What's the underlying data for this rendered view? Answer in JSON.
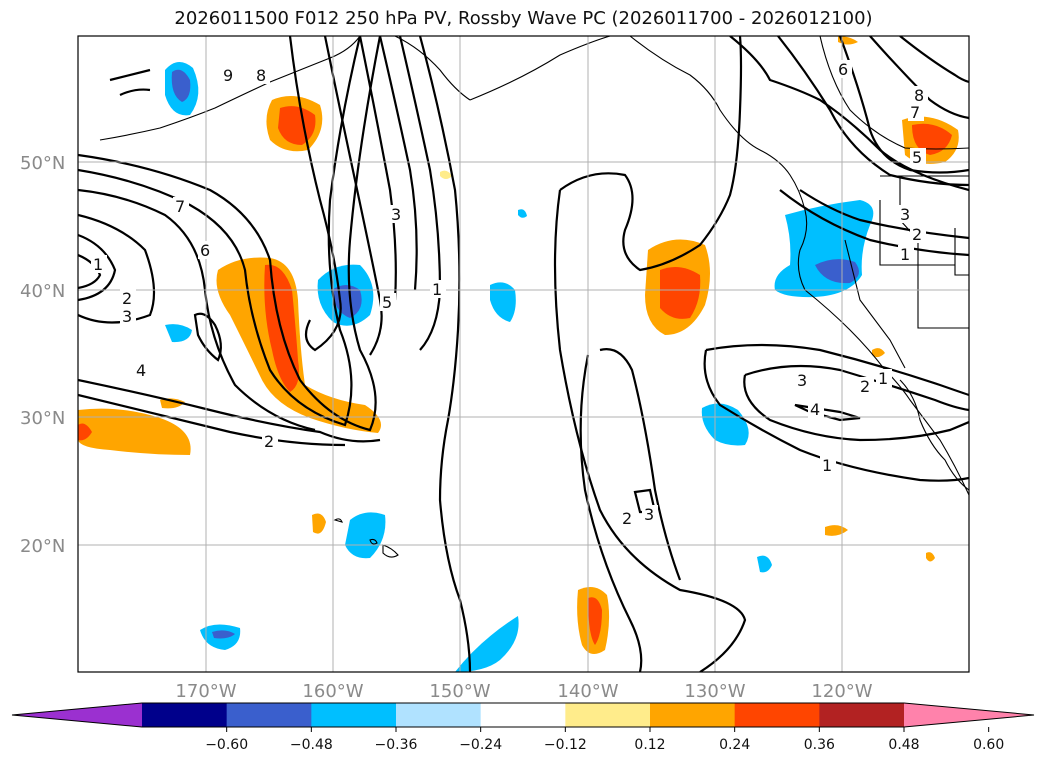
{
  "title": "2026011500 F012 250 hPa PV, Rossby Wave PC (2026011700 - 2026012100)",
  "lat_labels": [
    "50°N",
    "40°N",
    "30°N",
    "20°N"
  ],
  "lon_labels": [
    "170°W",
    "160°W",
    "150°W",
    "140°W",
    "130°W",
    "120°W"
  ],
  "colorbar": {
    "ticks": [
      "−0.60",
      "−0.48",
      "−0.36",
      "−0.24",
      "−0.12",
      "0.12",
      "0.24",
      "0.36",
      "0.48",
      "0.60"
    ],
    "colors": [
      "#9b30d0",
      "#00008b",
      "#3a5fcd",
      "#00bfff",
      "#b0e2ff",
      "#ffffff",
      "#ffec8b",
      "#ffa500",
      "#ff4500",
      "#b22222",
      "#ff82ab"
    ]
  },
  "contour_labels": [
    "9",
    "8",
    "7",
    "6",
    "1",
    "2",
    "3",
    "4",
    "2",
    "3",
    "5",
    "1",
    "2",
    "3",
    "1",
    "2",
    "3",
    "4",
    "1",
    "6",
    "8",
    "7",
    "5",
    "3",
    "2",
    "1"
  ],
  "map": {
    "lon_range": [
      -180,
      -110
    ],
    "lat_range": [
      10,
      60
    ]
  }
}
